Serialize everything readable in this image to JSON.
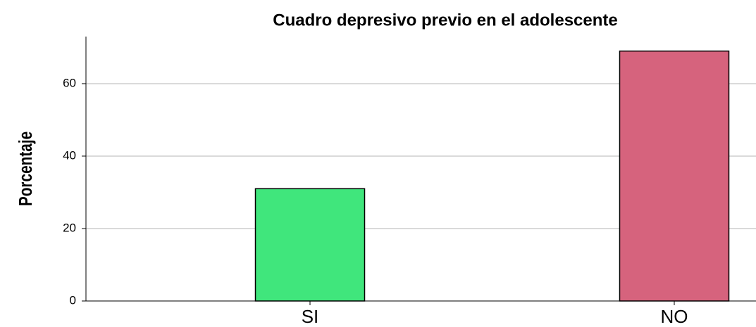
{
  "chart_data": {
    "type": "bar",
    "title": "Cuadro depresivo previo en el adolescente",
    "y_label": "Porcentaje",
    "categories": [
      "SI",
      "NO"
    ],
    "values": [
      31,
      69
    ],
    "colors": [
      "#40e67c",
      "#d6637d"
    ],
    "ylim": [
      0,
      73
    ],
    "yticks": [
      0,
      20,
      40,
      60
    ],
    "grid": true
  }
}
